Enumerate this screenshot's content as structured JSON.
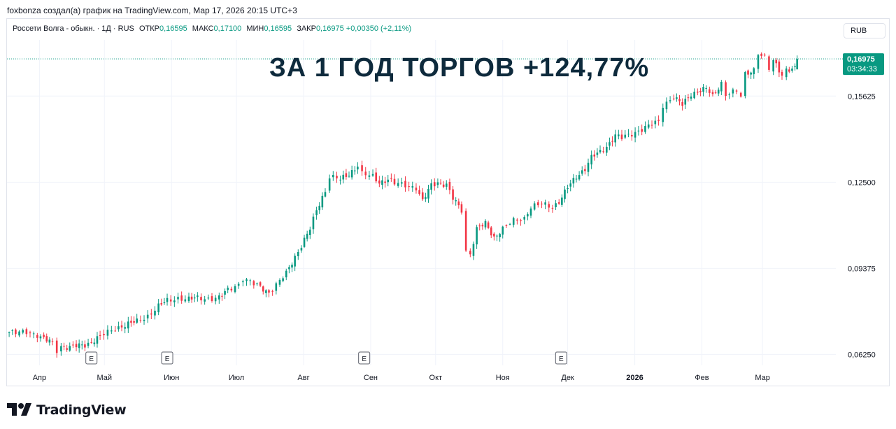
{
  "header": {
    "author_line": "foxbonza создал(а) график на TradingView.com, Мар 17, 2026 20:15 UTC+3"
  },
  "legend": {
    "symbol": "Россети Волга - обыкн. · 1Д · RUS",
    "open_label": "ОТКР",
    "open_value": "0,16595",
    "high_label": "МАКС",
    "high_value": "0,17100",
    "low_label": "МИН",
    "low_value": "0,16595",
    "close_label": "ЗАКР",
    "close_value": "0,16975",
    "change": "+0,00350 (+2,11%)"
  },
  "currency_button": "RUB",
  "headline": "ЗА 1 ГОД ТОРГОВ +124,77%",
  "price_tag": {
    "price": "0,16975",
    "countdown": "03:34:33"
  },
  "footer": {
    "brand": "TradingView"
  },
  "colors": {
    "up": "#089981",
    "down": "#f23645",
    "grid": "#f0f3fa",
    "headline": "#0e2a3c"
  },
  "chart_data": {
    "type": "candlestick",
    "title": "Россети Волга - обыкн.",
    "interval": "1Д",
    "currency": "RUB",
    "ylim": [
      0.055,
      0.176
    ],
    "y_ticks": [
      0.0625,
      0.09375,
      0.125,
      0.15625
    ],
    "y_tick_labels": [
      "0,06250",
      "0,09375",
      "0,12500",
      "0,15625"
    ],
    "x_ticks": [
      {
        "label": "Апр",
        "date": "2025-04-01"
      },
      {
        "label": "Май",
        "date": "2025-05-01"
      },
      {
        "label": "Июн",
        "date": "2025-06-01"
      },
      {
        "label": "Июл",
        "date": "2025-07-01"
      },
      {
        "label": "Авг",
        "date": "2025-08-01"
      },
      {
        "label": "Сен",
        "date": "2025-09-01"
      },
      {
        "label": "Окт",
        "date": "2025-10-01"
      },
      {
        "label": "Ноя",
        "date": "2025-11-01"
      },
      {
        "label": "Дек",
        "date": "2025-12-01"
      },
      {
        "label": "2026",
        "date": "2026-01-01",
        "bold": true
      },
      {
        "label": "Фев",
        "date": "2026-02-01"
      },
      {
        "label": "Мар",
        "date": "2026-03-01"
      }
    ],
    "event_markers": [
      {
        "label": "E",
        "date": "2025-04-25"
      },
      {
        "label": "E",
        "date": "2025-05-30"
      },
      {
        "label": "E",
        "date": "2025-08-29"
      },
      {
        "label": "E",
        "date": "2025-11-28"
      }
    ],
    "last_price": 0.16975,
    "grid": true,
    "candles_note": "approximate daily closes, sampled",
    "candles": [
      {
        "d": "2025-03-18",
        "c": 0.0705
      },
      {
        "d": "2025-03-21",
        "c": 0.0702
      },
      {
        "d": "2025-03-26",
        "c": 0.0708
      },
      {
        "d": "2025-03-31",
        "c": 0.0695
      },
      {
        "d": "2025-04-03",
        "c": 0.068
      },
      {
        "d": "2025-04-07",
        "c": 0.0668
      },
      {
        "d": "2025-04-09",
        "c": 0.064
      },
      {
        "d": "2025-04-11",
        "c": 0.0655
      },
      {
        "d": "2025-04-15",
        "c": 0.065
      },
      {
        "d": "2025-04-18",
        "c": 0.0655
      },
      {
        "d": "2025-04-22",
        "c": 0.066
      },
      {
        "d": "2025-04-25",
        "c": 0.067
      },
      {
        "d": "2025-04-29",
        "c": 0.069
      },
      {
        "d": "2025-05-06",
        "c": 0.072
      },
      {
        "d": "2025-05-12",
        "c": 0.0735
      },
      {
        "d": "2025-05-16",
        "c": 0.0745
      },
      {
        "d": "2025-05-21",
        "c": 0.0765
      },
      {
        "d": "2025-05-26",
        "c": 0.08
      },
      {
        "d": "2025-05-30",
        "c": 0.082
      },
      {
        "d": "2025-06-04",
        "c": 0.083
      },
      {
        "d": "2025-06-09",
        "c": 0.0825
      },
      {
        "d": "2025-06-13",
        "c": 0.083
      },
      {
        "d": "2025-06-18",
        "c": 0.0828
      },
      {
        "d": "2025-06-23",
        "c": 0.083
      },
      {
        "d": "2025-06-27",
        "c": 0.086
      },
      {
        "d": "2025-07-02",
        "c": 0.088
      },
      {
        "d": "2025-07-04",
        "c": 0.09
      },
      {
        "d": "2025-07-09",
        "c": 0.088
      },
      {
        "d": "2025-07-12",
        "c": 0.087
      },
      {
        "d": "2025-07-16",
        "c": 0.085
      },
      {
        "d": "2025-07-21",
        "c": 0.089
      },
      {
        "d": "2025-07-24",
        "c": 0.092
      },
      {
        "d": "2025-07-28",
        "c": 0.098
      },
      {
        "d": "2025-07-31",
        "c": 0.102
      },
      {
        "d": "2025-08-04",
        "c": 0.108
      },
      {
        "d": "2025-08-07",
        "c": 0.115
      },
      {
        "d": "2025-08-11",
        "c": 0.122
      },
      {
        "d": "2025-08-13",
        "c": 0.127
      },
      {
        "d": "2025-08-18",
        "c": 0.126
      },
      {
        "d": "2025-08-22",
        "c": 0.128
      },
      {
        "d": "2025-08-26",
        "c": 0.131
      },
      {
        "d": "2025-08-28",
        "c": 0.128
      },
      {
        "d": "2025-09-02",
        "c": 0.127
      },
      {
        "d": "2025-09-05",
        "c": 0.125
      },
      {
        "d": "2025-09-09",
        "c": 0.126
      },
      {
        "d": "2025-09-12",
        "c": 0.1245
      },
      {
        "d": "2025-09-17",
        "c": 0.124
      },
      {
        "d": "2025-09-22",
        "c": 0.123
      },
      {
        "d": "2025-09-25",
        "c": 0.118
      },
      {
        "d": "2025-09-29",
        "c": 0.124
      },
      {
        "d": "2025-10-02",
        "c": 0.125
      },
      {
        "d": "2025-10-06",
        "c": 0.124
      },
      {
        "d": "2025-10-09",
        "c": 0.119
      },
      {
        "d": "2025-10-13",
        "c": 0.115
      },
      {
        "d": "2025-10-15",
        "c": 0.1
      },
      {
        "d": "2025-10-17",
        "c": 0.099
      },
      {
        "d": "2025-10-20",
        "c": 0.108
      },
      {
        "d": "2025-10-24",
        "c": 0.11
      },
      {
        "d": "2025-10-28",
        "c": 0.105
      },
      {
        "d": "2025-11-01",
        "c": 0.108
      },
      {
        "d": "2025-11-06",
        "c": 0.111
      },
      {
        "d": "2025-11-11",
        "c": 0.112
      },
      {
        "d": "2025-11-14",
        "c": 0.116
      },
      {
        "d": "2025-11-19",
        "c": 0.117
      },
      {
        "d": "2025-11-24",
        "c": 0.116
      },
      {
        "d": "2025-11-27",
        "c": 0.118
      },
      {
        "d": "2025-12-01",
        "c": 0.123
      },
      {
        "d": "2025-12-05",
        "c": 0.127
      },
      {
        "d": "2025-12-09",
        "c": 0.13
      },
      {
        "d": "2025-12-12",
        "c": 0.134
      },
      {
        "d": "2025-12-16",
        "c": 0.136
      },
      {
        "d": "2025-12-19",
        "c": 0.138
      },
      {
        "d": "2025-12-23",
        "c": 0.142
      },
      {
        "d": "2025-12-26",
        "c": 0.141
      },
      {
        "d": "2026-01-12",
        "c": 0.147
      },
      {
        "d": "2026-01-14",
        "c": 0.153
      },
      {
        "d": "2026-01-19",
        "c": 0.156
      },
      {
        "d": "2026-01-23",
        "c": 0.153
      },
      {
        "d": "2026-01-27",
        "c": 0.157
      },
      {
        "d": "2026-01-30",
        "c": 0.158
      },
      {
        "d": "2026-02-03",
        "c": 0.159
      },
      {
        "d": "2026-02-06",
        "c": 0.156
      },
      {
        "d": "2026-02-10",
        "c": 0.161
      },
      {
        "d": "2026-02-12",
        "c": 0.157
      },
      {
        "d": "2026-02-17",
        "c": 0.158
      },
      {
        "d": "2026-02-19",
        "c": 0.156
      },
      {
        "d": "2026-02-21",
        "c": 0.164
      },
      {
        "d": "2026-02-25",
        "c": 0.166
      },
      {
        "d": "2026-02-27",
        "c": 0.172
      },
      {
        "d": "2026-03-02",
        "c": 0.17
      },
      {
        "d": "2026-03-04",
        "c": 0.166
      },
      {
        "d": "2026-03-06",
        "c": 0.169
      },
      {
        "d": "2026-03-10",
        "c": 0.164
      },
      {
        "d": "2026-03-12",
        "c": 0.166
      },
      {
        "d": "2026-03-16",
        "c": 0.1662
      },
      {
        "d": "2026-03-17",
        "c": 0.16975
      }
    ]
  }
}
